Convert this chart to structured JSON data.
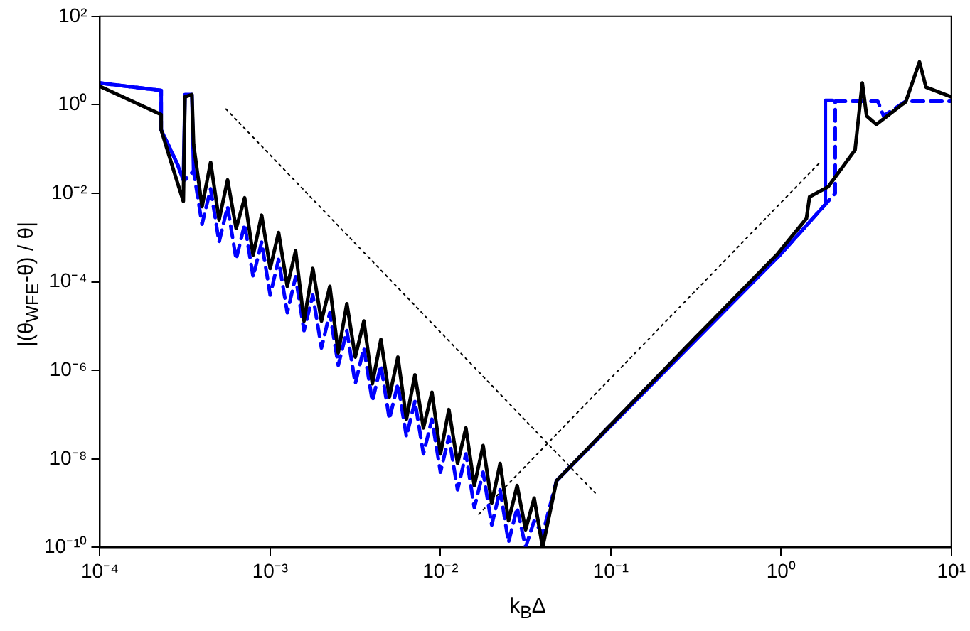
{
  "chart_data": {
    "type": "line",
    "xlabel": "k$_{B}$Δ",
    "ylabel": "|(θ$_{WFE}$-θ) / θ|",
    "log": "xy",
    "xlim": [
      0.0001,
      10
    ],
    "ylim": [
      1e-10,
      100
    ],
    "xticks": [
      {
        "value": 0.0001,
        "label": "10⁻⁴"
      },
      {
        "value": 0.001,
        "label": "10⁻³"
      },
      {
        "value": 0.01,
        "label": "10⁻²"
      },
      {
        "value": 0.1,
        "label": "10⁻¹"
      },
      {
        "value": 1,
        "label": "10⁰"
      },
      {
        "value": 10,
        "label": "10¹"
      }
    ],
    "yticks": [
      {
        "value": 1e-10,
        "label": "10⁻¹⁰"
      },
      {
        "value": 1e-08,
        "label": "10⁻⁸"
      },
      {
        "value": 1e-06,
        "label": "10⁻⁶"
      },
      {
        "value": 0.0001,
        "label": "10⁻⁴"
      },
      {
        "value": 0.01,
        "label": "10⁻²"
      },
      {
        "value": 1,
        "label": "10⁰"
      },
      {
        "value": 100,
        "label": "10²"
      }
    ],
    "series": [
      {
        "color": "#000000",
        "line_style": "solid",
        "x": [
          0.0001,
          0.000229,
          0.000229,
          0.000269,
          0.000309,
          0.000316,
          0.000347,
          0.000355,
          0.000398,
          0.000447,
          0.000501,
          0.000562,
          0.000631,
          0.000708,
          0.000794,
          0.000891,
          0.001,
          0.00112,
          0.00126,
          0.00141,
          0.00158,
          0.00178,
          0.002,
          0.00224,
          0.00251,
          0.00282,
          0.00316,
          0.00355,
          0.00398,
          0.00447,
          0.00501,
          0.00562,
          0.00631,
          0.00708,
          0.00794,
          0.00891,
          0.01,
          0.0112,
          0.0126,
          0.0141,
          0.0158,
          0.0178,
          0.02,
          0.0224,
          0.0251,
          0.0282,
          0.0316,
          0.0355,
          0.0398,
          0.048,
          0.1,
          0.316,
          0.955,
          1.41,
          1.47,
          1.89,
          2.72,
          3.0,
          3.18,
          3.63,
          5.4,
          6.5,
          7.1,
          10
        ],
        "values": [
          2.6,
          0.6,
          0.27,
          0.036,
          0.0066,
          1.5,
          1.7,
          0.126,
          0.005,
          0.05,
          0.0025,
          0.02,
          0.0016,
          0.0079,
          0.0004,
          0.0032,
          0.0002,
          0.0013,
          7.9e-05,
          0.0005,
          1.3e-05,
          0.0002,
          1.3e-05,
          7.9e-05,
          2.5e-06,
          3.2e-05,
          2e-06,
          1.3e-05,
          5e-07,
          5e-06,
          2.5e-07,
          2e-06,
          7.9e-08,
          7.9e-07,
          5e-08,
          3.2e-07,
          1.3e-08,
          1.3e-07,
          7.9e-09,
          5e-08,
          2.5e-09,
          2e-08,
          1e-09,
          7.9e-09,
          4e-10,
          2.5e-09,
          2.5e-10,
          1.3e-09,
          1e-10,
          3.2e-09,
          5.9e-08,
          5.6e-06,
          0.00043,
          0.0027,
          0.0083,
          0.014,
          0.095,
          3.1,
          0.56,
          0.36,
          1.17,
          9.3,
          2.5,
          1.5
        ]
      },
      {
        "color": "#0000ff",
        "line_style": "dashed",
        "x": [
          0.0001,
          0.000229,
          0.000229,
          0.000282,
          0.000316,
          0.000355,
          0.000398,
          0.000447,
          0.000501,
          0.000562,
          0.000631,
          0.000708,
          0.000794,
          0.000891,
          0.001,
          0.00112,
          0.00126,
          0.00141,
          0.00158,
          0.00178,
          0.002,
          0.00224,
          0.00251,
          0.00282,
          0.00316,
          0.00355,
          0.00398,
          0.00447,
          0.00501,
          0.00562,
          0.00631,
          0.00708,
          0.00794,
          0.00891,
          0.01,
          0.0112,
          0.0126,
          0.0141,
          0.0158,
          0.0178,
          0.02,
          0.0224,
          0.0251,
          0.0282,
          0.0316,
          0.0355,
          0.0398,
          0.048,
          0.1,
          0.316,
          1.0,
          2.08,
          2.08,
          3.7,
          4.0,
          5.4,
          10
        ],
        "values": [
          3.1,
          2.1,
          0.27,
          0.05,
          0.02,
          0.032,
          0.002,
          0.0126,
          0.00079,
          0.005,
          0.00032,
          0.002,
          0.00013,
          0.00079,
          5e-05,
          0.00032,
          2e-05,
          0.00013,
          7.9e-06,
          5e-05,
          3.2e-06,
          2e-05,
          1.3e-06,
          7.9e-06,
          5e-07,
          3.2e-06,
          2e-07,
          1.3e-06,
          7.9e-08,
          5e-07,
          3.2e-08,
          2e-07,
          1.3e-08,
          7.9e-08,
          5e-09,
          3.2e-08,
          2e-09,
          1.3e-08,
          7.9e-10,
          5e-09,
          3.2e-10,
          2e-09,
          1.3e-10,
          7.9e-10,
          1e-10,
          4e-10,
          2e-10,
          3.2e-09,
          5.9e-08,
          5.6e-06,
          0.00043,
          0.01,
          1.2,
          1.2,
          0.56,
          1.2,
          1.2
        ]
      },
      {
        "color": "#0000ff",
        "line_style": "solid",
        "x": [
          0.0001,
          0.000229,
          0.000229,
          0.000282,
          0.000309,
          0.000316,
          0.000347,
          0.000355,
          0.01,
          0.048,
          1.0,
          1.82,
          1.82,
          2.0
        ],
        "values": [
          3.1,
          2.1,
          0.27,
          0.05,
          0.02,
          1.7,
          1.7,
          0.032,
          null,
          3.2e-09,
          0.00043,
          0.0056,
          1.26,
          1.26
        ]
      },
      {
        "type": "line",
        "color": "#000000",
        "line_style": "dotted",
        "x": [
          0.00055,
          0.081
        ],
        "values": [
          0.8,
          1.7e-09
        ]
      },
      {
        "type": "line",
        "color": "#000000",
        "line_style": "dotted",
        "x": [
          0.0168,
          1.71
        ],
        "values": [
          5.6e-10,
          0.052
        ]
      }
    ]
  }
}
